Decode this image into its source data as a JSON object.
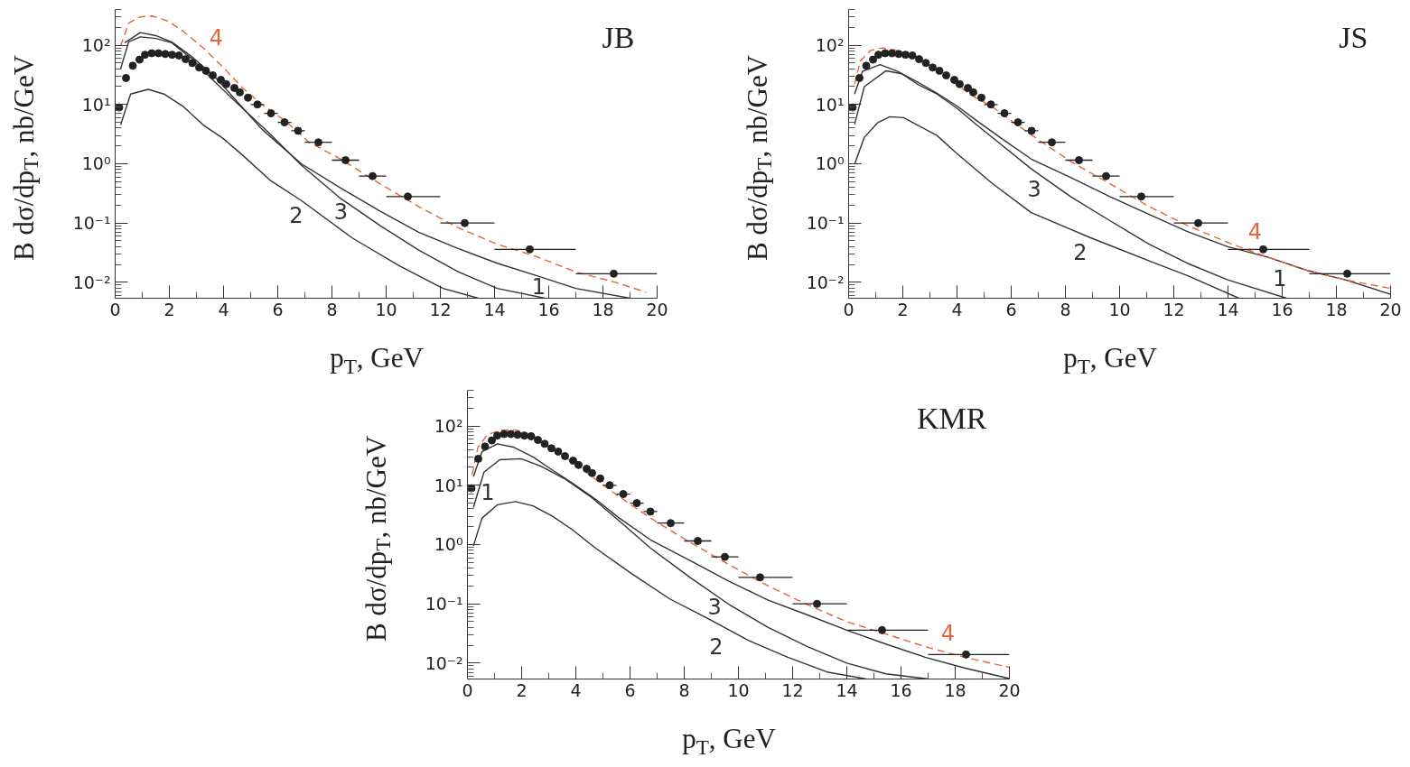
{
  "chart_data": [
    {
      "type": "line",
      "title": "JB",
      "xlabel": "p$_{T}$, GeV",
      "ylabel": "B dσ/dp$_{T}$, nb/GeV",
      "log": "y",
      "xlim": [
        0,
        20
      ],
      "xticks": [
        0,
        2,
        4,
        6,
        8,
        10,
        12,
        14,
        16,
        18,
        20
      ],
      "ylim": [
        0.0054,
        400
      ],
      "yticks": [
        {
          "value": 0.01,
          "label": "10⁻²"
        },
        {
          "value": 0.1,
          "label": "10⁻¹"
        },
        {
          "value": 1,
          "label": "10⁰"
        },
        {
          "value": 10,
          "label": "10¹"
        },
        {
          "value": 100,
          "label": "10²"
        }
      ],
      "grid": false,
      "series": [
        {
          "color": "#333333",
          "line_style": "solid",
          "x": [
            0.35,
            0.93,
            1.5,
            2.09,
            2.81,
            3.68,
            4.4,
            5.42,
            6.87,
            8.32,
            9.77,
            11.2,
            12.67,
            14.1,
            15.57,
            17.0,
            19.0
          ],
          "values": [
            110,
            163,
            145,
            113,
            65,
            29,
            12.6,
            3.8,
            1.0,
            0.39,
            0.16,
            0.07,
            0.037,
            0.021,
            0.0129,
            0.0079,
            0.0054
          ]
        },
        {
          "color": "#333333",
          "line_style": "solid",
          "x": [
            0.2,
            0.57,
            1.22,
            1.8,
            2.52,
            3.25,
            3.97,
            4.7,
            5.71,
            6.87,
            8.75,
            10.49,
            12.1,
            13.4
          ],
          "values": [
            4.5,
            15,
            18,
            15,
            9.2,
            4.5,
            2.7,
            1.4,
            0.53,
            0.24,
            0.056,
            0.019,
            0.0079,
            0.0054
          ]
        },
        {
          "color": "#333333",
          "line_style": "solid",
          "x": [
            0.2,
            0.5,
            0.93,
            1.5,
            2.09,
            2.81,
            3.68,
            4.55,
            5.71,
            6.87,
            8.32,
            9.77,
            11.2,
            12.67,
            14.1,
            15.86
          ],
          "values": [
            40,
            114,
            138,
            130,
            110,
            60,
            24,
            10,
            3.2,
            0.95,
            0.26,
            0.091,
            0.035,
            0.015,
            0.0079,
            0.0054
          ]
        },
        {
          "color": "#e8643c",
          "line_style": "dashed",
          "x": [
            0.2,
            0.5,
            0.93,
            1.36,
            1.94,
            2.52,
            3.25,
            3.97,
            4.7,
            5.42,
            6.29,
            7.16,
            8.32,
            9.77,
            11.2,
            12.67,
            14.1,
            15.57,
            17.0,
            18.46,
            19.6
          ],
          "values": [
            97,
            236,
            300,
            310,
            256,
            170,
            90,
            43,
            19,
            10,
            5.2,
            2.3,
            1.2,
            0.46,
            0.19,
            0.083,
            0.044,
            0.027,
            0.015,
            0.01,
            0.0068
          ]
        },
        {
          "type": "scatter",
          "color": "#222222",
          "marker": "circle",
          "x": [
            0.15,
            0.4,
            0.65,
            0.9,
            1.1,
            1.35,
            1.6,
            1.85,
            2.1,
            2.35,
            2.6,
            2.85,
            3.1,
            3.35,
            3.6,
            3.9,
            4.1,
            4.4,
            4.6,
            4.9,
            5.25,
            5.75,
            6.25,
            6.75,
            7.5,
            8.5,
            9.5,
            10.8,
            12.9,
            15.3,
            18.4
          ],
          "values": [
            8.9,
            28,
            45,
            57,
            69,
            73,
            73,
            71,
            69,
            67,
            58,
            50,
            42,
            37,
            31,
            26,
            22,
            19,
            16,
            13,
            10,
            7.1,
            5.0,
            3.6,
            2.3,
            1.15,
            0.62,
            0.28,
            0.1,
            0.036,
            0.014
          ],
          "xerrors": [
            null,
            null,
            null,
            null,
            null,
            null,
            null,
            null,
            null,
            null,
            null,
            null,
            null,
            null,
            null,
            null,
            null,
            null,
            null,
            null,
            [
              5,
              5.5
            ],
            [
              5.5,
              6
            ],
            [
              6,
              6.5
            ],
            [
              6.5,
              7
            ],
            [
              7,
              8
            ],
            [
              8,
              9
            ],
            [
              9,
              10
            ],
            [
              10,
              12
            ],
            [
              12,
              14
            ],
            [
              14,
              17
            ],
            [
              17,
              20
            ]
          ]
        }
      ],
      "annotations": [
        {
          "text": "4",
          "x": 3.6,
          "y": 64
        },
        {
          "text": "3",
          "x": 8.2,
          "y": 0.29
        },
        {
          "text": "2",
          "x": 6.55,
          "y": 0.3
        },
        {
          "text": "1",
          "x": 15.5,
          "y": 0.0132
        }
      ]
    },
    {
      "type": "line",
      "title": "JS",
      "xlabel": "p$_{T}$, GeV",
      "ylabel": "B dσ/dp$_{T}$, nb/GeV",
      "log": "y",
      "xlim": [
        0,
        20
      ],
      "xticks": [
        0,
        2,
        4,
        6,
        8,
        10,
        12,
        14,
        16,
        18,
        20
      ],
      "ylim": [
        0.0054,
        400
      ],
      "yticks": [
        {
          "value": 0.01,
          "label": "10⁻²"
        },
        {
          "value": 0.1,
          "label": "10⁻¹"
        },
        {
          "value": 1,
          "label": "10⁰"
        },
        {
          "value": 10,
          "label": "10¹"
        },
        {
          "value": 100,
          "label": "10²"
        }
      ],
      "grid": false,
      "series": [
        {
          "color": "#333333",
          "line_style": "solid",
          "x": [
            0.22,
            0.51,
            1.16,
            1.81,
            2.54,
            3.26,
            3.99,
            4.71,
            5.58,
            6.74,
            8.19,
            9.64,
            11.09,
            12.5,
            13.99,
            15.43,
            16.9,
            18.33,
            20
          ],
          "values": [
            15,
            36,
            47,
            36,
            24,
            15.5,
            9.5,
            5.4,
            2.8,
            1.2,
            0.59,
            0.28,
            0.14,
            0.072,
            0.04,
            0.027,
            0.016,
            0.011,
            0.0063
          ]
        },
        {
          "color": "#333333",
          "line_style": "solid",
          "x": [
            0.22,
            0.58,
            1.09,
            1.52,
            2.03,
            2.54,
            3.26,
            3.99,
            5.29,
            6.74,
            8.91,
            11.09,
            12.5,
            14.4
          ],
          "values": [
            0.98,
            2.8,
            5.0,
            6.2,
            6.0,
            4.5,
            3.0,
            1.5,
            0.47,
            0.15,
            0.057,
            0.023,
            0.013,
            0.0054
          ]
        },
        {
          "color": "#333333",
          "line_style": "solid",
          "x": [
            0.22,
            0.58,
            1.38,
            1.96,
            2.54,
            3.26,
            3.99,
            4.71,
            5.58,
            6.74,
            8.19,
            9.64,
            11.09,
            12.5,
            13.99,
            16.16
          ],
          "values": [
            4.6,
            20,
            37,
            33,
            22,
            15,
            8.7,
            4.6,
            2.2,
            0.82,
            0.28,
            0.11,
            0.044,
            0.021,
            0.011,
            0.0054
          ]
        },
        {
          "color": "#e8643c",
          "line_style": "dashed",
          "x": [
            0.22,
            0.43,
            0.8,
            1.23,
            1.81,
            2.39,
            3.12,
            3.84,
            4.57,
            5.29,
            6.16,
            7.03,
            8.19,
            9.64,
            11.09,
            12.5,
            13.99,
            15.43,
            16.9,
            18.33,
            20
          ],
          "values": [
            22,
            54,
            81,
            90,
            81,
            63,
            42,
            24,
            14,
            9.2,
            4.7,
            2.5,
            1.1,
            0.46,
            0.19,
            0.091,
            0.047,
            0.027,
            0.016,
            0.011,
            0.0079
          ]
        },
        {
          "type": "scatter",
          "color": "#222222",
          "marker": "circle",
          "x": [
            0.15,
            0.4,
            0.65,
            0.9,
            1.1,
            1.35,
            1.6,
            1.85,
            2.1,
            2.35,
            2.6,
            2.85,
            3.1,
            3.35,
            3.6,
            3.9,
            4.1,
            4.4,
            4.6,
            4.9,
            5.25,
            5.75,
            6.25,
            6.75,
            7.5,
            8.5,
            9.5,
            10.8,
            12.9,
            15.3,
            18.4
          ],
          "values": [
            8.9,
            28,
            45,
            57,
            69,
            73,
            73,
            71,
            69,
            67,
            58,
            50,
            42,
            37,
            31,
            26,
            22,
            19,
            16,
            13,
            10,
            7.1,
            5.0,
            3.6,
            2.3,
            1.15,
            0.62,
            0.28,
            0.1,
            0.036,
            0.014
          ],
          "xerrors": [
            null,
            null,
            null,
            null,
            null,
            null,
            null,
            null,
            null,
            null,
            null,
            null,
            null,
            null,
            null,
            null,
            null,
            null,
            null,
            null,
            [
              5,
              5.5
            ],
            [
              5.5,
              6
            ],
            [
              6,
              6.5
            ],
            [
              6.5,
              7
            ],
            [
              7,
              8
            ],
            [
              8,
              9
            ],
            [
              9,
              10
            ],
            [
              10,
              12
            ],
            [
              12,
              14
            ],
            [
              14,
              17
            ],
            [
              17,
              20
            ]
          ]
        }
      ],
      "annotations": [
        {
          "text": "3",
          "x": 6.72,
          "y": 0.83
        },
        {
          "text": "2",
          "x": 8.41,
          "y": 0.071
        },
        {
          "text": "4",
          "x": 14.86,
          "y": 0.0336
        },
        {
          "text": "1",
          "x": 15.78,
          "y": 0.0238
        }
      ]
    },
    {
      "type": "line",
      "title": "KMR",
      "xlabel": "p$_{T}$, GeV",
      "ylabel": "B dσ/dp$_{T}$, nb/GeV",
      "log": "y",
      "xlim": [
        0,
        20
      ],
      "xticks": [
        0,
        2,
        4,
        6,
        8,
        10,
        12,
        14,
        16,
        18,
        20
      ],
      "ylim": [
        0.0054,
        400
      ],
      "yticks": [
        {
          "value": 0.01,
          "label": "10⁻²"
        },
        {
          "value": 0.1,
          "label": "10⁻¹"
        },
        {
          "value": 1,
          "label": "10⁰"
        },
        {
          "value": 10,
          "label": "10¹"
        },
        {
          "value": 100,
          "label": "10²"
        }
      ],
      "grid": false,
      "series": [
        {
          "color": "#333333",
          "line_style": "solid",
          "x": [
            0.22,
            0.54,
            1.11,
            1.69,
            2.42,
            3.14,
            3.86,
            4.73,
            5.6,
            6.76,
            8.21,
            9.65,
            11.1,
            12.55,
            14.0,
            15.44,
            16.89,
            18.34,
            20
          ],
          "values": [
            14,
            37,
            50,
            44,
            30,
            18,
            11,
            5.8,
            2.8,
            1.2,
            0.54,
            0.24,
            0.115,
            0.065,
            0.036,
            0.021,
            0.0126,
            0.0083,
            0.0055
          ]
        },
        {
          "color": "#333333",
          "line_style": "solid",
          "x": [
            0.22,
            0.54,
            1.11,
            1.77,
            2.42,
            3.14,
            3.86,
            4.73,
            6.03,
            7.48,
            8.93,
            10.38,
            11.82,
            13.27,
            14.72
          ],
          "values": [
            0.95,
            2.8,
            4.7,
            5.3,
            4.5,
            3.0,
            1.8,
            0.87,
            0.33,
            0.12,
            0.055,
            0.024,
            0.0126,
            0.0071,
            0.0054
          ]
        },
        {
          "color": "#333333",
          "line_style": "solid",
          "x": [
            0.22,
            0.61,
            1.19,
            1.98,
            2.71,
            3.57,
            4.59,
            5.6,
            6.76,
            8.21,
            9.65,
            11.1,
            12.55,
            14.0,
            15.44,
            17.03
          ],
          "values": [
            4.2,
            16.6,
            27,
            28,
            21,
            13,
            6.2,
            2.5,
            0.87,
            0.28,
            0.098,
            0.04,
            0.019,
            0.01,
            0.0066,
            0.0054
          ]
        },
        {
          "color": "#e8643c",
          "line_style": "dashed",
          "x": [
            0.17,
            0.39,
            0.75,
            1.26,
            1.84,
            2.42,
            3.14,
            3.86,
            4.59,
            5.31,
            6.18,
            7.05,
            8.2,
            9.65,
            11.1,
            12.55,
            14.0,
            15.44,
            16.89,
            18.34,
            20
          ],
          "values": [
            15,
            44,
            72,
            85,
            85,
            66,
            41,
            25,
            14,
            8,
            4.2,
            2.3,
            1.1,
            0.46,
            0.2,
            0.097,
            0.05,
            0.031,
            0.019,
            0.0126,
            0.0085
          ]
        },
        {
          "type": "scatter",
          "color": "#222222",
          "marker": "circle",
          "x": [
            0.15,
            0.4,
            0.65,
            0.9,
            1.1,
            1.35,
            1.6,
            1.85,
            2.1,
            2.35,
            2.6,
            2.85,
            3.1,
            3.35,
            3.6,
            3.9,
            4.1,
            4.4,
            4.6,
            4.9,
            5.25,
            5.75,
            6.25,
            6.75,
            7.5,
            8.5,
            9.5,
            10.8,
            12.9,
            15.3,
            18.4
          ],
          "values": [
            8.9,
            28,
            45,
            57,
            69,
            73,
            73,
            71,
            69,
            67,
            58,
            50,
            42,
            37,
            31,
            26,
            22,
            19,
            16,
            13,
            10,
            7.1,
            5.0,
            3.6,
            2.3,
            1.15,
            0.62,
            0.28,
            0.1,
            0.036,
            0.014
          ],
          "xerrors": [
            null,
            null,
            null,
            null,
            null,
            null,
            null,
            null,
            null,
            null,
            null,
            null,
            null,
            null,
            null,
            null,
            null,
            null,
            null,
            null,
            [
              5,
              5.5
            ],
            [
              5.5,
              6
            ],
            [
              6,
              6.5
            ],
            [
              6.5,
              7
            ],
            [
              7,
              8
            ],
            [
              8,
              9
            ],
            [
              9,
              10
            ],
            [
              10,
              12
            ],
            [
              12,
              14
            ],
            [
              14,
              17
            ],
            [
              17,
              20
            ]
          ]
        }
      ],
      "annotations": [
        {
          "text": "1",
          "x": 0.61,
          "y": 16.6
        },
        {
          "text": "3",
          "x": 8.99,
          "y": 0.16
        },
        {
          "text": "2",
          "x": 9.05,
          "y": 0.042
        },
        {
          "text": "4",
          "x": 17.6,
          "y": 0.015
        }
      ]
    }
  ]
}
